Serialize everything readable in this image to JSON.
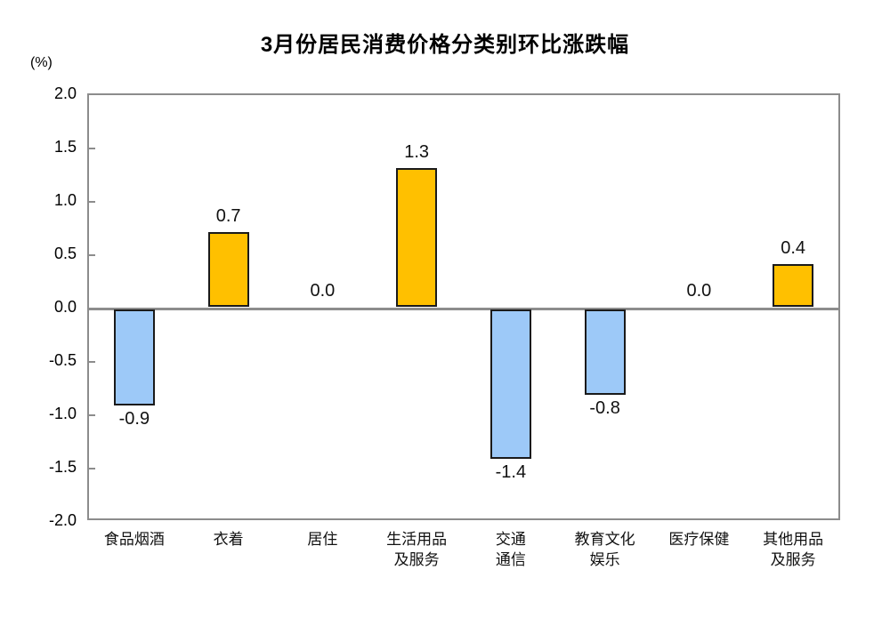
{
  "chart_data": {
    "type": "bar",
    "title": "3月份居民消费价格分类别环比涨跌幅",
    "unit_label": "(%)",
    "categories": [
      "食品烟酒",
      "衣着",
      "居住",
      "生活用品\n及服务",
      "交通\n通信",
      "教育文化\n娱乐",
      "医疗保健",
      "其他用品\n及服务"
    ],
    "values": [
      -0.9,
      0.7,
      0.0,
      1.3,
      -1.4,
      -0.8,
      0.0,
      0.4
    ],
    "value_labels": [
      "-0.9",
      "0.7",
      "0.0",
      "1.3",
      "-1.4",
      "-0.8",
      "0.0",
      "0.4"
    ],
    "ylim": [
      -2.0,
      2.0
    ],
    "ytick_step": 0.5,
    "yticks": [
      "2.0",
      "1.5",
      "1.0",
      "0.5",
      "0.0",
      "-0.5",
      "-1.0",
      "-1.5",
      "-2.0"
    ],
    "grid": false,
    "legend": "none",
    "colors": {
      "positive_bar": "#FFC000",
      "negative_bar": "#9DC9F8",
      "bar_border": "#1a1a1a",
      "axis_frame": "#8c8c8c",
      "zero_line": "#8c8c8c",
      "text": "#111111"
    }
  }
}
